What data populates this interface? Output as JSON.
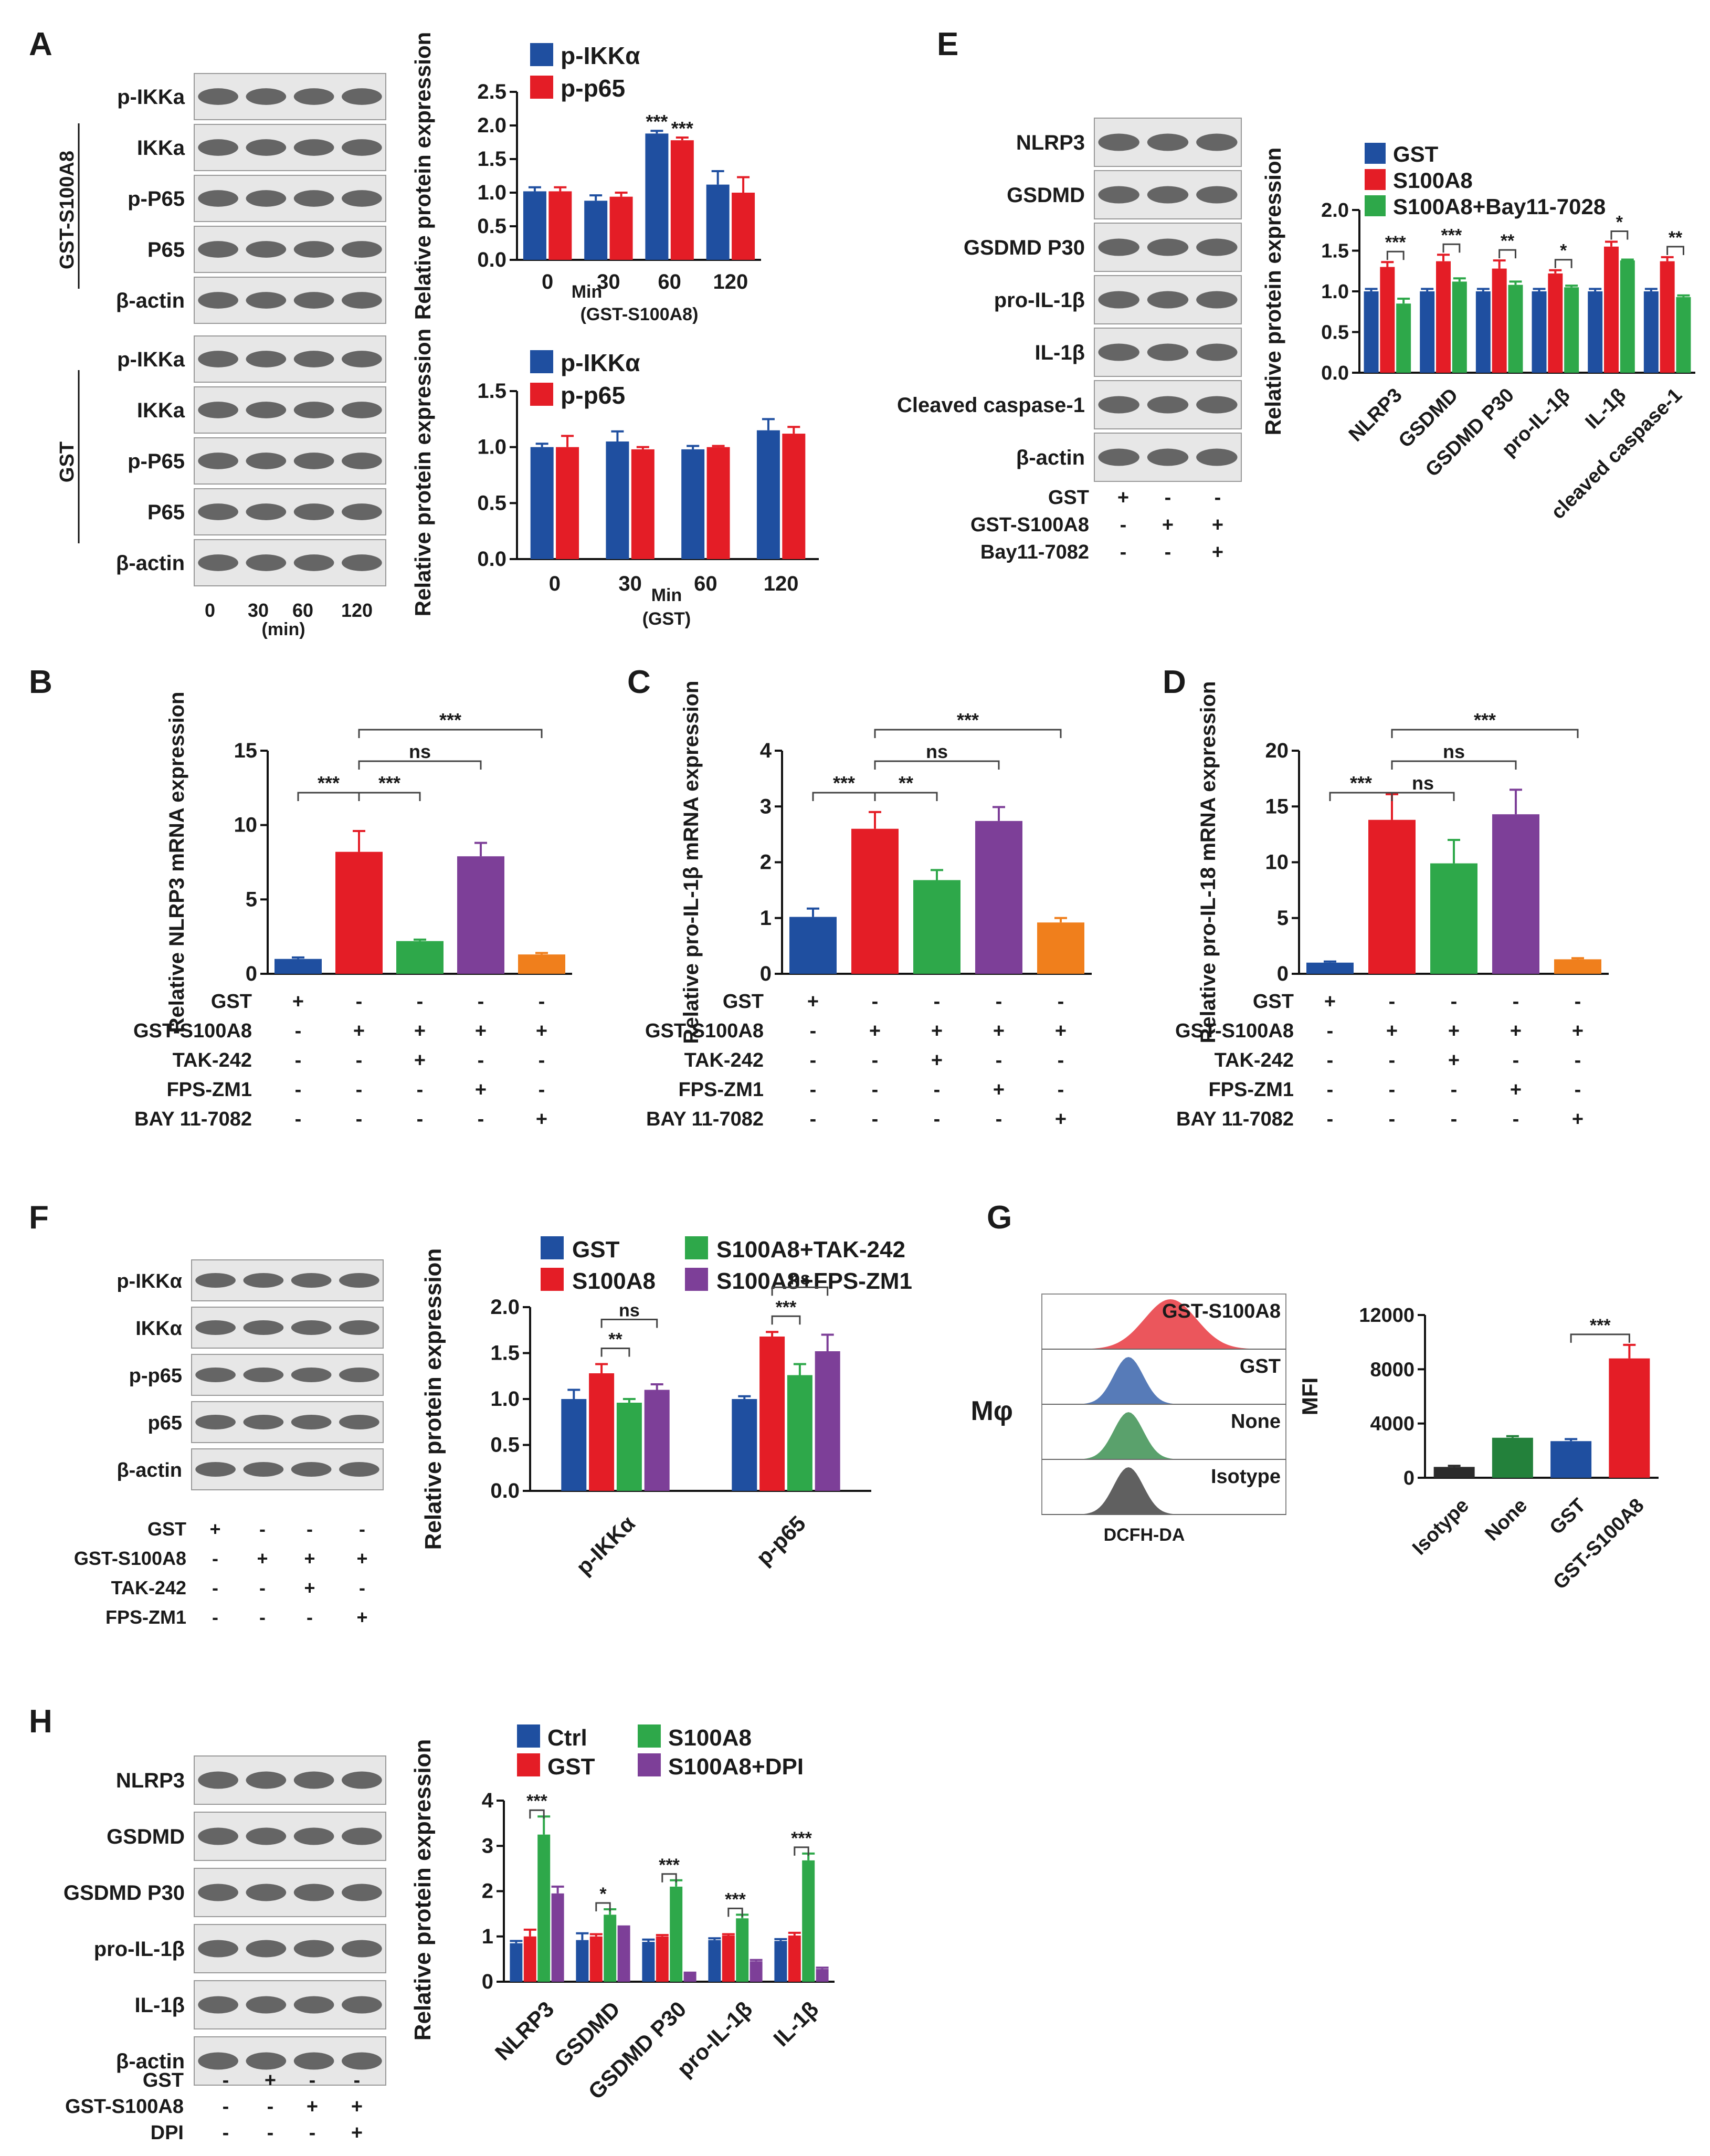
{
  "colors": {
    "blue": "#1f4fa0",
    "red": "#e41d26",
    "green": "#2ea84a",
    "purple": "#7d3f98",
    "orange": "#f07f1c",
    "black": "#2b2b2b",
    "darkgreen": "#23813b",
    "text": "#1a1a1a"
  },
  "panel_letters": [
    "A",
    "B",
    "C",
    "D",
    "E",
    "F",
    "G",
    "H"
  ],
  "chart_data": [
    {
      "id": "A1",
      "type": "bar",
      "title": "",
      "ylabel": "Relative protein expression",
      "xlabel_lines": [
        "Min",
        "(GST-S100A8)"
      ],
      "ylim": [
        0,
        2.5
      ],
      "yticks": [
        "0.0",
        "0.5",
        "1.0",
        "1.5",
        "2.0",
        "2.5"
      ],
      "categories": [
        "0",
        "30",
        "60",
        "120"
      ],
      "series": [
        {
          "name": "p-IKKα",
          "color": "blue",
          "values": [
            1.02,
            0.88,
            1.88,
            1.12
          ],
          "errors": [
            0.06,
            0.08,
            0.04,
            0.2
          ]
        },
        {
          "name": "p-p65",
          "color": "red",
          "values": [
            1.02,
            0.94,
            1.78,
            1.0
          ],
          "errors": [
            0.06,
            0.06,
            0.04,
            0.23
          ]
        }
      ],
      "annotations": [
        {
          "cat": 2,
          "series": 0,
          "text": "***"
        },
        {
          "cat": 2,
          "series": 1,
          "text": "***"
        }
      ]
    },
    {
      "id": "A2",
      "type": "bar",
      "title": "",
      "ylabel": "Relative protein expression",
      "xlabel_lines": [
        "Min",
        "(GST)"
      ],
      "ylim": [
        0,
        1.5
      ],
      "yticks": [
        "0.0",
        "0.5",
        "1.0",
        "1.5"
      ],
      "categories": [
        "0",
        "30",
        "60",
        "120"
      ],
      "series": [
        {
          "name": "p-IKKα",
          "color": "blue",
          "values": [
            1.0,
            1.05,
            0.98,
            1.15
          ],
          "errors": [
            0.03,
            0.09,
            0.03,
            0.1
          ]
        },
        {
          "name": "p-p65",
          "color": "red",
          "values": [
            1.0,
            0.98,
            1.0,
            1.12
          ],
          "errors": [
            0.1,
            0.02,
            0.01,
            0.06
          ]
        }
      ],
      "annotations": []
    },
    {
      "id": "B",
      "type": "bar",
      "ylabel": "Relative NLRP3 mRNA expression",
      "ylim": [
        0,
        15
      ],
      "yticks": [
        "0",
        "5",
        "10",
        "15"
      ],
      "categories": [
        "1",
        "2",
        "3",
        "4",
        "5"
      ],
      "values": [
        1.0,
        8.2,
        2.2,
        7.9,
        1.3
      ],
      "errors": [
        0.1,
        1.4,
        0.1,
        0.9,
        0.1
      ],
      "bar_colors": [
        "blue",
        "red",
        "green",
        "purple",
        "orange"
      ],
      "brackets": [
        {
          "a": 1,
          "b": 0,
          "text": "***"
        },
        {
          "a": 1,
          "b": 2,
          "text": "***"
        },
        {
          "a": 1,
          "b": 3,
          "text": "ns"
        },
        {
          "a": 1,
          "b": 4,
          "text": "***"
        }
      ],
      "treatments": [
        {
          "label": "GST",
          "signs": [
            "+",
            "-",
            "-",
            "-",
            "-"
          ]
        },
        {
          "label": "GST-S100A8",
          "signs": [
            "-",
            "+",
            "+",
            "+",
            "+"
          ]
        },
        {
          "label": "TAK-242",
          "signs": [
            "-",
            "-",
            "+",
            "-",
            "-"
          ]
        },
        {
          "label": "FPS-ZM1",
          "signs": [
            "-",
            "-",
            "-",
            "+",
            "-"
          ]
        },
        {
          "label": "BAY 11-7082",
          "signs": [
            "-",
            "-",
            "-",
            "-",
            "+"
          ]
        }
      ]
    },
    {
      "id": "C",
      "type": "bar",
      "ylabel": "Relative pro-IL-1β mRNA expression",
      "ylim": [
        0,
        4
      ],
      "yticks": [
        "0",
        "1",
        "2",
        "3",
        "4"
      ],
      "categories": [
        "1",
        "2",
        "3",
        "4",
        "5"
      ],
      "values": [
        1.02,
        2.6,
        1.68,
        2.74,
        0.92
      ],
      "errors": [
        0.15,
        0.3,
        0.18,
        0.25,
        0.08
      ],
      "bar_colors": [
        "blue",
        "red",
        "green",
        "purple",
        "orange"
      ],
      "brackets": [
        {
          "a": 1,
          "b": 0,
          "text": "***"
        },
        {
          "a": 1,
          "b": 2,
          "text": "**"
        },
        {
          "a": 1,
          "b": 3,
          "text": "ns"
        },
        {
          "a": 1,
          "b": 4,
          "text": "***"
        }
      ],
      "treatments": [
        {
          "label": "GST",
          "signs": [
            "+",
            "-",
            "-",
            "-",
            "-"
          ]
        },
        {
          "label": "GST-S100A8",
          "signs": [
            "-",
            "+",
            "+",
            "+",
            "+"
          ]
        },
        {
          "label": "TAK-242",
          "signs": [
            "-",
            "-",
            "+",
            "-",
            "-"
          ]
        },
        {
          "label": "FPS-ZM1",
          "signs": [
            "-",
            "-",
            "-",
            "+",
            "-"
          ]
        },
        {
          "label": "BAY 11-7082",
          "signs": [
            "-",
            "-",
            "-",
            "-",
            "+"
          ]
        }
      ]
    },
    {
      "id": "D",
      "type": "bar",
      "ylabel": "Relative pro-IL-18 mRNA expression",
      "ylim": [
        0,
        20
      ],
      "yticks": [
        "0",
        "5",
        "10",
        "15",
        "20"
      ],
      "categories": [
        "1",
        "2",
        "3",
        "4",
        "5"
      ],
      "values": [
        1.0,
        13.8,
        9.9,
        14.3,
        1.3
      ],
      "errors": [
        0.1,
        2.3,
        2.1,
        2.2,
        0.1
      ],
      "bar_colors": [
        "blue",
        "red",
        "green",
        "purple",
        "orange"
      ],
      "brackets": [
        {
          "a": 1,
          "b": 0,
          "text": "***"
        },
        {
          "a": 1,
          "b": 2,
          "text": "ns"
        },
        {
          "a": 1,
          "b": 3,
          "text": "ns"
        },
        {
          "a": 1,
          "b": 4,
          "text": "***"
        }
      ],
      "treatments": [
        {
          "label": "GST",
          "signs": [
            "+",
            "-",
            "-",
            "-",
            "-"
          ]
        },
        {
          "label": "GST-S100A8",
          "signs": [
            "-",
            "+",
            "+",
            "+",
            "+"
          ]
        },
        {
          "label": "TAK-242",
          "signs": [
            "-",
            "-",
            "+",
            "-",
            "-"
          ]
        },
        {
          "label": "FPS-ZM1",
          "signs": [
            "-",
            "-",
            "-",
            "+",
            "-"
          ]
        },
        {
          "label": "BAY 11-7082",
          "signs": [
            "-",
            "-",
            "-",
            "-",
            "+"
          ]
        }
      ]
    },
    {
      "id": "E",
      "type": "bar",
      "ylabel": "Relative protein expression",
      "ylim": [
        0,
        2.0
      ],
      "yticks": [
        "0.0",
        "0.5",
        "1.0",
        "1.5",
        "2.0"
      ],
      "categories": [
        "NLRP3",
        "GSDMD",
        "GSDMD P30",
        "pro-IL-1β",
        "IL-1β",
        "cleaved caspase-1"
      ],
      "series": [
        {
          "name": "GST",
          "color": "blue",
          "values": [
            1.0,
            1.0,
            1.0,
            1.0,
            1.0,
            1.0
          ],
          "errors": [
            0.03,
            0.03,
            0.03,
            0.03,
            0.03,
            0.03
          ]
        },
        {
          "name": "S100A8",
          "color": "red",
          "values": [
            1.3,
            1.37,
            1.28,
            1.22,
            1.55,
            1.37
          ],
          "errors": [
            0.06,
            0.08,
            0.1,
            0.04,
            0.06,
            0.05
          ]
        },
        {
          "name": "S100A8+Bay11-7028",
          "color": "green",
          "values": [
            0.85,
            1.12,
            1.08,
            1.05,
            1.38,
            0.93
          ],
          "errors": [
            0.06,
            0.04,
            0.04,
            0.02,
            0.01,
            0.02
          ]
        }
      ],
      "group_annotations": [
        "***",
        "***",
        "**",
        "*",
        "*",
        "**"
      ]
    },
    {
      "id": "F",
      "type": "bar",
      "ylabel": "Relative protein expression",
      "ylim": [
        0,
        2.0
      ],
      "yticks": [
        "0.0",
        "0.5",
        "1.0",
        "1.5",
        "2.0"
      ],
      "categories": [
        "p-IKKα",
        "p-p65"
      ],
      "series": [
        {
          "name": "GST",
          "color": "blue",
          "values": [
            1.0,
            1.0
          ],
          "errors": [
            0.1,
            0.03
          ]
        },
        {
          "name": "S100A8",
          "color": "red",
          "values": [
            1.28,
            1.68
          ],
          "errors": [
            0.1,
            0.05
          ]
        },
        {
          "name": "S100A8+TAK-242",
          "color": "green",
          "values": [
            0.96,
            1.26
          ],
          "errors": [
            0.04,
            0.12
          ]
        },
        {
          "name": "S100A8+FPS-ZM1",
          "color": "purple",
          "values": [
            1.1,
            1.52
          ],
          "errors": [
            0.06,
            0.18
          ]
        }
      ],
      "brackets": [
        {
          "cat": 0,
          "a": 1,
          "b": 2,
          "text": "**"
        },
        {
          "cat": 0,
          "a": 1,
          "b": 3,
          "text": "ns"
        },
        {
          "cat": 1,
          "a": 1,
          "b": 2,
          "text": "***"
        },
        {
          "cat": 1,
          "a": 1,
          "b": 3,
          "text": "ns"
        }
      ]
    },
    {
      "id": "G",
      "type": "bar",
      "ylabel": "MFI",
      "ylim": [
        0,
        12000
      ],
      "yticks": [
        "0",
        "4000",
        "8000",
        "12000"
      ],
      "categories": [
        "Isotype",
        "None",
        "GST",
        "GST-S100A8"
      ],
      "values": [
        800,
        2950,
        2700,
        8800
      ],
      "errors": [
        80,
        120,
        150,
        1000
      ],
      "bar_colors": [
        "black",
        "darkgreen",
        "blue",
        "red"
      ],
      "brackets": [
        {
          "a": 2,
          "b": 3,
          "text": "***"
        }
      ]
    },
    {
      "id": "H",
      "type": "bar",
      "ylabel": "Relative protein expression",
      "ylim": [
        0,
        4
      ],
      "yticks": [
        "0",
        "1",
        "2",
        "3",
        "4"
      ],
      "categories": [
        "NLRP3",
        "GSDMD",
        "GSDMD P30",
        "pro-IL-1β",
        "IL-1β"
      ],
      "series": [
        {
          "name": "Ctrl",
          "color": "blue",
          "values": [
            0.85,
            0.92,
            0.88,
            0.92,
            0.9
          ],
          "errors": [
            0.05,
            0.15,
            0.05,
            0.04,
            0.04
          ]
        },
        {
          "name": "GST",
          "color": "red",
          "values": [
            1.0,
            1.0,
            1.0,
            1.02,
            1.02
          ],
          "errors": [
            0.15,
            0.05,
            0.03,
            0.03,
            0.06
          ]
        },
        {
          "name": "S100A8",
          "color": "green",
          "values": [
            3.25,
            1.48,
            2.1,
            1.4,
            2.68
          ],
          "errors": [
            0.4,
            0.12,
            0.14,
            0.08,
            0.15
          ]
        },
        {
          "name": "S100A8+DPI",
          "color": "purple",
          "values": [
            1.95,
            1.2,
            0.18,
            0.45,
            0.28
          ],
          "errors": [
            0.15,
            0.02,
            0.02,
            0.03,
            0.03
          ]
        }
      ],
      "group_annotations": [
        "***",
        "*",
        "***",
        "***",
        "***"
      ]
    }
  ],
  "panelA": {
    "top_bands": [
      "p-IKKa",
      "IKKa",
      "p-P65",
      "P65",
      "β-actin"
    ],
    "bottom_bands": [
      "p-IKKa",
      "IKKa",
      "p-P65",
      "P65",
      "β-actin"
    ],
    "top_group": "GST-S100A8",
    "bottom_group": "GST",
    "time_ticks": [
      "0",
      "30",
      "60",
      "120"
    ],
    "time_unit": "(min)"
  },
  "panelE": {
    "bands": [
      "NLRP3",
      "GSDMD",
      "GSDMD P30",
      "pro-IL-1β",
      "IL-1β",
      "Cleaved caspase-1",
      "β-actin"
    ],
    "treatments": [
      {
        "label": "GST",
        "signs": [
          "+",
          "-",
          "-"
        ]
      },
      {
        "label": "GST-S100A8",
        "signs": [
          "-",
          "+",
          "+"
        ]
      },
      {
        "label": "Bay11-7082",
        "signs": [
          "-",
          "-",
          "+"
        ]
      }
    ]
  },
  "panelF": {
    "bands": [
      "p-IKKα",
      "IKKα",
      "p-p65",
      "p65",
      "β-actin"
    ],
    "treatments": [
      {
        "label": "GST",
        "signs": [
          "+",
          "-",
          "-",
          "-"
        ]
      },
      {
        "label": "GST-S100A8",
        "signs": [
          "-",
          "+",
          "+",
          "+"
        ]
      },
      {
        "label": "TAK-242",
        "signs": [
          "-",
          "-",
          "+",
          "-"
        ]
      },
      {
        "label": "FPS-ZM1",
        "signs": [
          "-",
          "-",
          "-",
          "+"
        ]
      }
    ]
  },
  "panelG": {
    "cell_label": "Mφ",
    "x_label": "DCFH-DA",
    "histograms": [
      {
        "label": "GST-S100A8",
        "color": "red"
      },
      {
        "label": "GST",
        "color": "blue"
      },
      {
        "label": "None",
        "color": "darkgreen"
      },
      {
        "label": "Isotype",
        "color": "black"
      }
    ]
  },
  "panelH": {
    "bands": [
      "NLRP3",
      "GSDMD",
      "GSDMD P30",
      "pro-IL-1β",
      "IL-1β",
      "β-actin"
    ],
    "treatments": [
      {
        "label": "GST",
        "signs": [
          "-",
          "+",
          "-",
          "-"
        ]
      },
      {
        "label": "GST-S100A8",
        "signs": [
          "-",
          "-",
          "+",
          "+"
        ]
      },
      {
        "label": "DPI",
        "signs": [
          "-",
          "-",
          "-",
          "+"
        ]
      }
    ]
  }
}
